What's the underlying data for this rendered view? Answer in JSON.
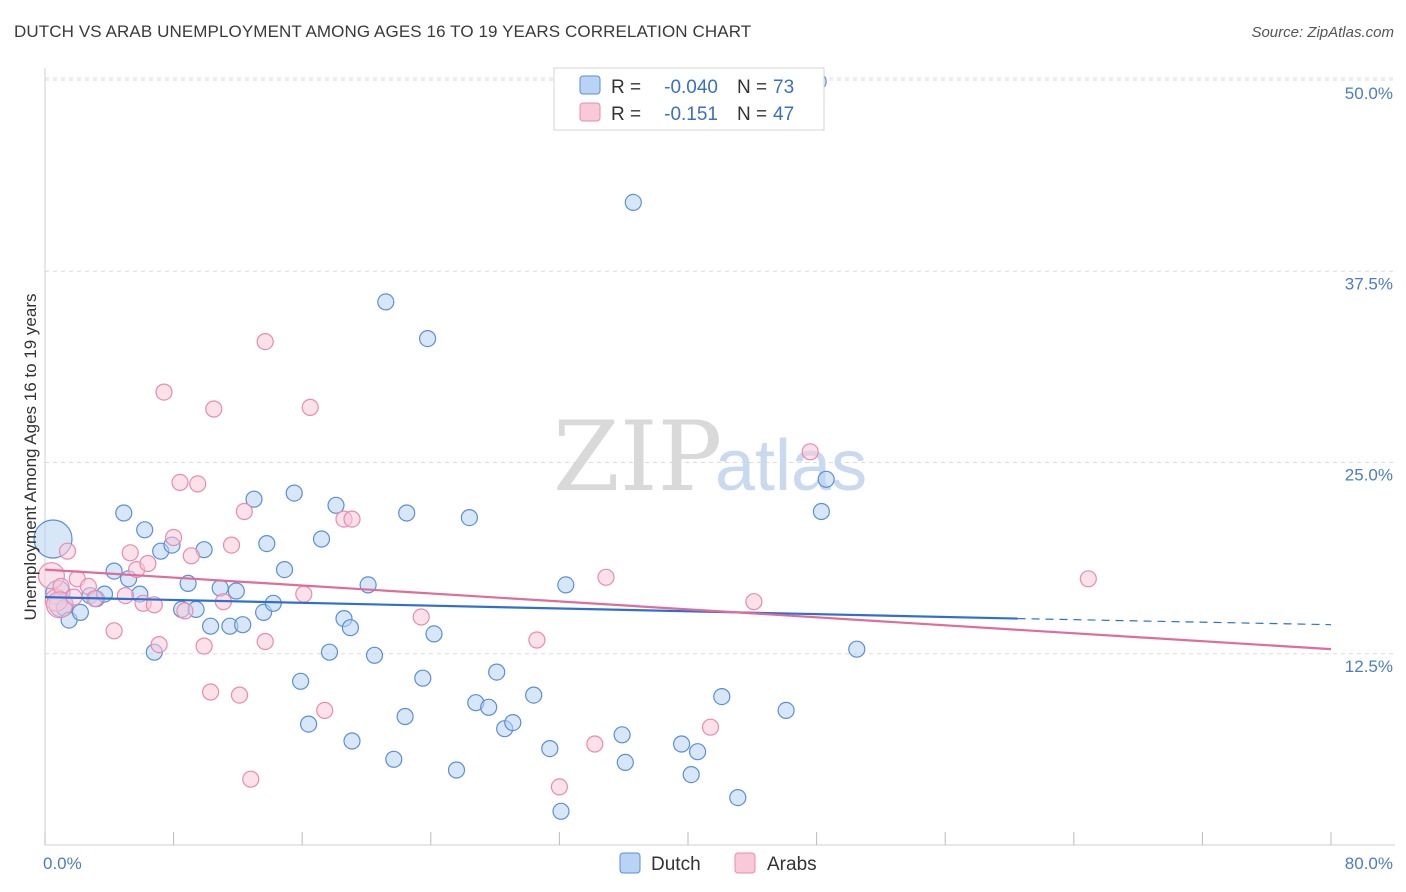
{
  "header": {
    "title": "DUTCH VS ARAB UNEMPLOYMENT AMONG AGES 16 TO 19 YEARS CORRELATION CHART",
    "source": "Source: ZipAtlas.com"
  },
  "watermark": {
    "zip": "ZIP",
    "atlas": "atlas"
  },
  "legend": {
    "r_label": "R =",
    "n_label": "N =",
    "rows": [
      {
        "name": "Dutch",
        "r": "-0.040",
        "n": "73",
        "color": "#7aaee8",
        "fill": "#b8d3f3"
      },
      {
        "name": "Arabs",
        "r": "-0.151",
        "n": "47",
        "color": "#f09ab7",
        "fill": "#f8c9d9"
      }
    ]
  },
  "chart_data": {
    "type": "scatter",
    "xlabel": "",
    "ylabel": "Unemployment Among Ages 16 to 19 years",
    "xlim": [
      0,
      80
    ],
    "ylim": [
      0,
      50
    ],
    "x_tick_labels": [
      "0.0%",
      "80.0%"
    ],
    "y_ticks": [
      {
        "value": 12.5,
        "label": "12.5%"
      },
      {
        "value": 25.0,
        "label": "25.0%"
      },
      {
        "value": 37.5,
        "label": "37.5%"
      },
      {
        "value": 50.0,
        "label": "50.0%"
      }
    ],
    "grid": true,
    "series": [
      {
        "name": "Dutch",
        "color": "#5a8fd8",
        "fill": "#b8d3f3",
        "trend": {
          "x0": 0,
          "y0": 16.2,
          "x1": 60.5,
          "y1": 14.8,
          "dash_to": 80,
          "dash_y": 14.4,
          "color": "#2f6fd0"
        },
        "points": [
          [
            0.5,
            20.0
          ],
          [
            0.8,
            16.5
          ],
          [
            1.0,
            15.7
          ],
          [
            1.2,
            15.5
          ],
          [
            1.5,
            14.7
          ],
          [
            2.2,
            15.2
          ],
          [
            2.8,
            16.3
          ],
          [
            3.2,
            16.1
          ],
          [
            3.7,
            16.4
          ],
          [
            4.3,
            17.9
          ],
          [
            4.9,
            21.7
          ],
          [
            5.2,
            17.4
          ],
          [
            5.9,
            16.4
          ],
          [
            6.2,
            20.6
          ],
          [
            6.8,
            12.6
          ],
          [
            7.2,
            19.2
          ],
          [
            7.9,
            19.6
          ],
          [
            8.5,
            15.4
          ],
          [
            8.9,
            17.1
          ],
          [
            9.4,
            15.4
          ],
          [
            9.9,
            19.3
          ],
          [
            10.3,
            14.3
          ],
          [
            10.9,
            16.8
          ],
          [
            11.5,
            14.3
          ],
          [
            11.9,
            16.6
          ],
          [
            12.3,
            14.4
          ],
          [
            13.0,
            22.6
          ],
          [
            13.6,
            15.2
          ],
          [
            13.8,
            19.7
          ],
          [
            14.2,
            15.8
          ],
          [
            14.9,
            18.0
          ],
          [
            15.5,
            23.0
          ],
          [
            15.9,
            10.7
          ],
          [
            16.4,
            7.9
          ],
          [
            17.2,
            20.0
          ],
          [
            17.7,
            12.6
          ],
          [
            18.1,
            22.2
          ],
          [
            18.6,
            14.8
          ],
          [
            19.1,
            6.8
          ],
          [
            19.0,
            14.2
          ],
          [
            20.1,
            17.0
          ],
          [
            20.5,
            12.4
          ],
          [
            21.2,
            35.5
          ],
          [
            21.7,
            5.6
          ],
          [
            22.4,
            8.4
          ],
          [
            22.5,
            21.7
          ],
          [
            23.5,
            10.9
          ],
          [
            23.8,
            33.1
          ],
          [
            24.2,
            13.8
          ],
          [
            25.6,
            4.9
          ],
          [
            26.4,
            21.4
          ],
          [
            26.8,
            9.3
          ],
          [
            27.6,
            9.0
          ],
          [
            28.1,
            11.3
          ],
          [
            28.6,
            7.6
          ],
          [
            29.1,
            8.0
          ],
          [
            30.4,
            9.8
          ],
          [
            31.4,
            6.3
          ],
          [
            32.1,
            2.2
          ],
          [
            32.4,
            17.0
          ],
          [
            35.9,
            7.2
          ],
          [
            36.1,
            5.4
          ],
          [
            36.6,
            42.0
          ],
          [
            39.6,
            6.6
          ],
          [
            40.2,
            4.6
          ],
          [
            40.6,
            6.1
          ],
          [
            42.1,
            9.7
          ],
          [
            43.1,
            3.1
          ],
          [
            46.1,
            8.8
          ],
          [
            48.1,
            49.9
          ],
          [
            48.3,
            21.8
          ],
          [
            48.6,
            23.9
          ],
          [
            50.5,
            12.8
          ]
        ]
      },
      {
        "name": "Arabs",
        "color": "#ea8bae",
        "fill": "#f8c9d9",
        "trend": {
          "x0": 0,
          "y0": 18.0,
          "x1": 80,
          "y1": 12.8,
          "color": "#e06c98"
        },
        "points": [
          [
            0.4,
            17.6
          ],
          [
            0.7,
            16.0
          ],
          [
            1.0,
            16.9
          ],
          [
            1.4,
            19.2
          ],
          [
            2.0,
            17.4
          ],
          [
            2.7,
            16.9
          ],
          [
            3.1,
            16.1
          ],
          [
            4.3,
            14.0
          ],
          [
            5.0,
            16.3
          ],
          [
            5.3,
            19.1
          ],
          [
            5.7,
            18.0
          ],
          [
            6.1,
            15.8
          ],
          [
            6.4,
            18.4
          ],
          [
            6.8,
            15.7
          ],
          [
            7.1,
            13.1
          ],
          [
            7.4,
            29.6
          ],
          [
            8.0,
            20.1
          ],
          [
            8.4,
            23.7
          ],
          [
            8.7,
            15.3
          ],
          [
            9.1,
            18.9
          ],
          [
            9.5,
            23.6
          ],
          [
            9.9,
            13.0
          ],
          [
            10.3,
            10.0
          ],
          [
            10.5,
            28.5
          ],
          [
            11.1,
            15.9
          ],
          [
            11.6,
            19.6
          ],
          [
            12.1,
            9.8
          ],
          [
            12.4,
            21.8
          ],
          [
            12.8,
            4.3
          ],
          [
            13.7,
            13.3
          ],
          [
            13.7,
            32.9
          ],
          [
            16.1,
            16.4
          ],
          [
            16.5,
            28.6
          ],
          [
            17.4,
            8.8
          ],
          [
            18.6,
            21.3
          ],
          [
            19.1,
            21.3
          ],
          [
            23.4,
            14.9
          ],
          [
            30.6,
            13.4
          ],
          [
            32.0,
            3.8
          ],
          [
            34.2,
            6.6
          ],
          [
            34.9,
            17.5
          ],
          [
            41.4,
            7.7
          ],
          [
            44.1,
            15.9
          ],
          [
            47.6,
            25.7
          ],
          [
            64.9,
            17.4
          ],
          [
            0.9,
            15.7
          ],
          [
            1.8,
            16.2
          ]
        ]
      }
    ]
  }
}
